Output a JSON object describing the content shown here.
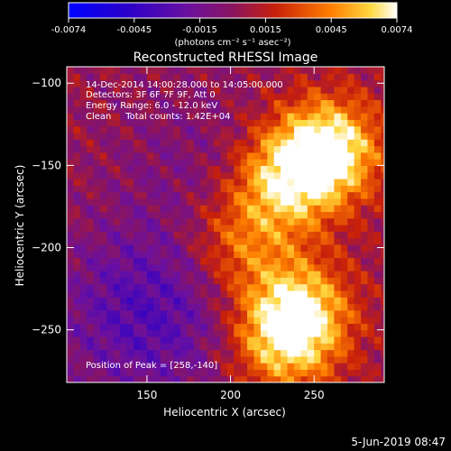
{
  "colorbar": {
    "ticks": [
      "-0.0074",
      "-0.0045",
      "-0.0015",
      "0.0015",
      "0.0045",
      "0.0074"
    ],
    "unit_label": "(photons cm⁻² s⁻¹ asec⁻²)",
    "range": [
      -0.0074,
      0.0074
    ]
  },
  "plot": {
    "title": "Reconstructed RHESSI Image",
    "info_lines": [
      "14-Dec-2014 14:00:28.000 to 14:05:00.000",
      "Detectors: 3F 6F 7F 9F, Att 0",
      "Energy Range: 6.0 - 12.0 keV",
      "Clean     Total counts: 1.42E+04"
    ],
    "peak_text": "Position of Peak = [258,-140]",
    "footer_date": "5-Jun-2019 08:47"
  },
  "chart_data": {
    "type": "heatmap",
    "title": "Reconstructed RHESSI Image",
    "xlabel": "Heliocentric X (arcsec)",
    "ylabel": "Heliocentric Y (arcsec)",
    "xlim": [
      102,
      292
    ],
    "ylim": [
      -282,
      -90
    ],
    "x_ticks": [
      150,
      200,
      250
    ],
    "y_ticks": [
      -100,
      -150,
      -200,
      -250
    ],
    "colorscale": "blue-purple-red-orange-yellow-white",
    "value_range": [
      -0.0074,
      0.0074
    ],
    "peak": [
      258,
      -140
    ],
    "sources": [
      {
        "x": 258,
        "y": -140,
        "value": 0.0074
      },
      {
        "x": 232,
        "y": -160,
        "value": 0.0055
      },
      {
        "x": 240,
        "y": -238,
        "value": 0.0058
      },
      {
        "x": 232,
        "y": -258,
        "value": 0.0045
      },
      {
        "x": 205,
        "y": -198,
        "value": 0.0035
      },
      {
        "x": 150,
        "y": -240,
        "value": -0.0035
      },
      {
        "x": 180,
        "y": -145,
        "value": -0.0012
      }
    ]
  }
}
